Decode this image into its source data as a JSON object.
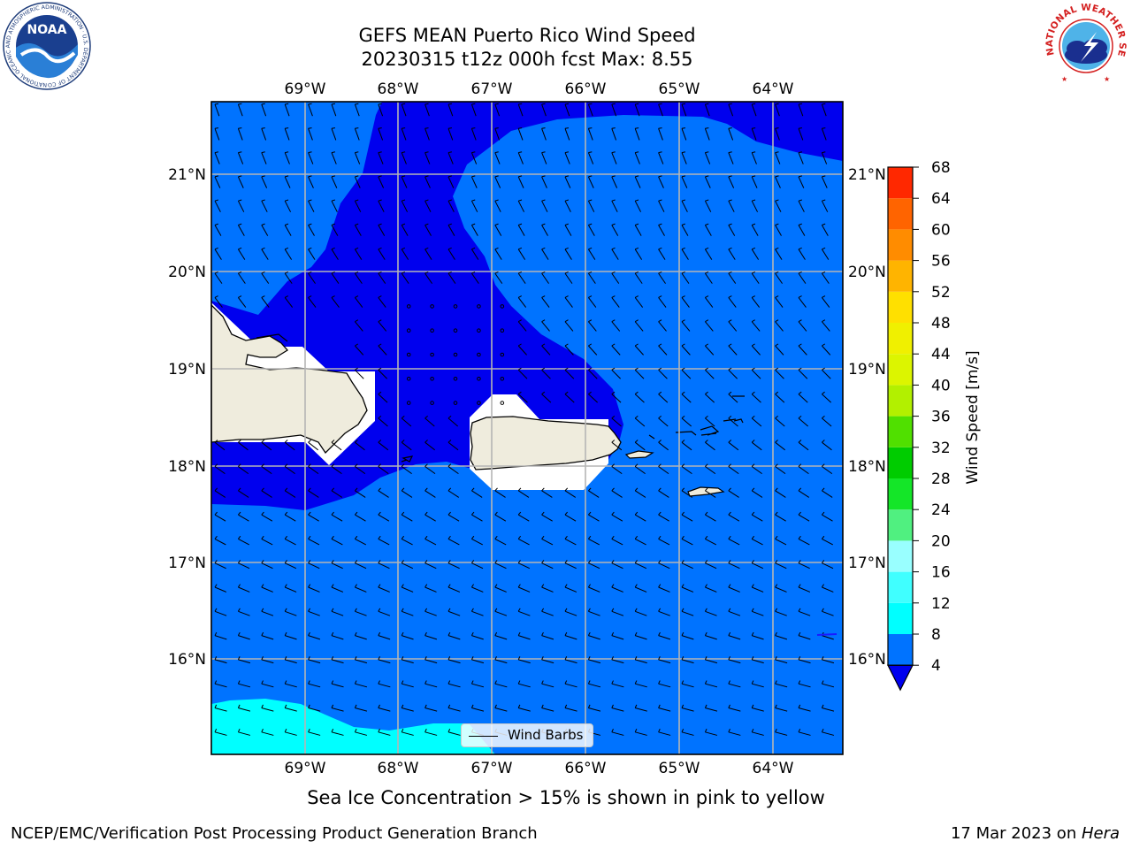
{
  "title": {
    "line1": "GEFS MEAN Puerto Rico Wind Speed",
    "line2": "20230315 t12z 000h fcst   Max: 8.55"
  },
  "map": {
    "lon_labels": [
      "69°W",
      "68°W",
      "67°W",
      "66°W",
      "65°W",
      "64°W"
    ],
    "lat_labels": [
      "21°N",
      "20°N",
      "19°N",
      "18°N",
      "17°N",
      "16°N"
    ],
    "legend_label": "Wind Barbs",
    "colors": {
      "speed_4_8": "#0073ff",
      "speed_lt_4": "#0000ee",
      "speed_8_12": "#00ffff",
      "land": "#efecdd",
      "grid": "#b5b5b5"
    }
  },
  "colorbar": {
    "label": "Wind Speed [m/s]",
    "ticks": [
      "4",
      "8",
      "12",
      "16",
      "20",
      "24",
      "28",
      "32",
      "36",
      "40",
      "44",
      "48",
      "52",
      "56",
      "60",
      "64",
      "68"
    ],
    "colors": [
      "#0073ff",
      "#00ffff",
      "#40ffff",
      "#99ffff",
      "#50f080",
      "#14e628",
      "#00cc00",
      "#50e000",
      "#b2f000",
      "#dcf500",
      "#f0f000",
      "#ffe000",
      "#ffb400",
      "#ff8c00",
      "#ff6400",
      "#ff2800",
      "#ff0000"
    ],
    "under_color": "#0000ee"
  },
  "subtitle": "Sea Ice Concentration > 15% is shown in pink to yellow",
  "footer": {
    "left": "NCEP/EMC/Verification Post Processing Product Generation Branch",
    "date": "17 Mar 2023 on ",
    "machine": "Hera"
  },
  "logos": {
    "noaa_text": "NOAA",
    "noaa_ring": "NATIONAL OCEANIC AND ATMOSPHERIC ADMINISTRATION · U.S. DEPARTMENT OF COMMERCE",
    "nws_ring": "NATIONAL WEATHER SERVICE"
  }
}
